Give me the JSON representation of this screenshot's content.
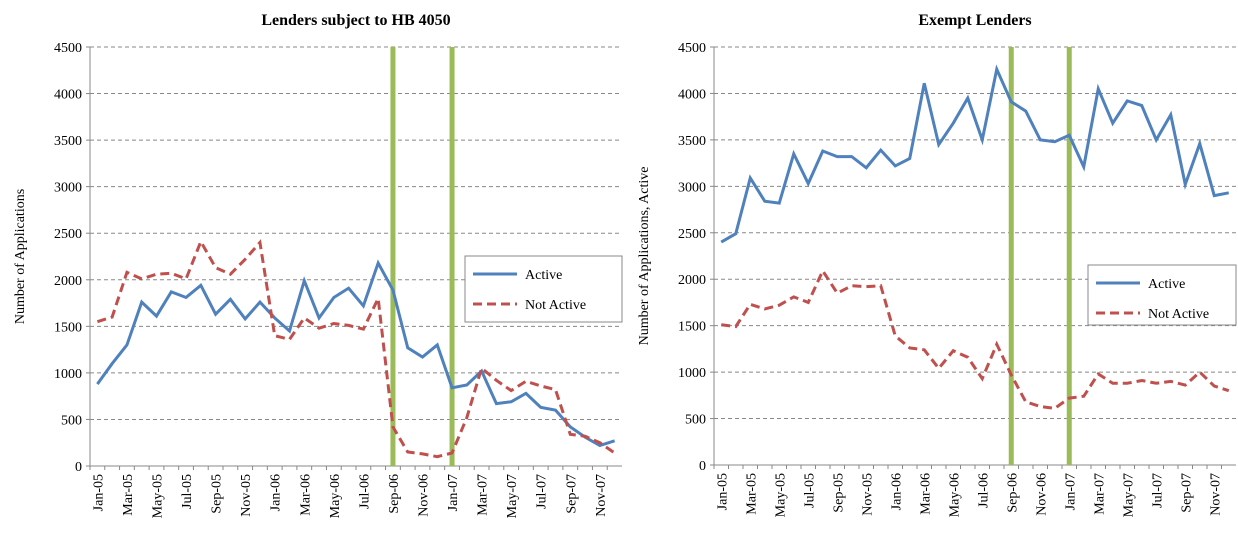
{
  "chart_data": [
    {
      "type": "line",
      "title": "Lenders subject to HB 4050",
      "y_label": "Number of Applications",
      "categories": [
        "Jan-05",
        null,
        "Mar-05",
        null,
        "May-05",
        null,
        "Jul-05",
        null,
        "Sep-05",
        null,
        "Nov-05",
        null,
        "Jan-06",
        null,
        "Mar-06",
        null,
        "May-06",
        null,
        "Jul-06",
        null,
        "Sep-06",
        null,
        "Nov-06",
        null,
        "Jan-07",
        null,
        "Mar-07",
        null,
        "May-07",
        null,
        "Jul-07",
        null,
        "Sep-07",
        null,
        "Nov-07",
        null
      ],
      "series": [
        {
          "name": "Active",
          "color": "#4f81bd",
          "dash": false,
          "values": [
            880,
            1100,
            1300,
            1760,
            1610,
            1870,
            1810,
            1940,
            1630,
            1790,
            1580,
            1760,
            1590,
            1450,
            1990,
            1590,
            1810,
            1910,
            1720,
            2180,
            1890,
            1270,
            1170,
            1300,
            840,
            870,
            1020,
            670,
            690,
            780,
            630,
            600,
            420,
            310,
            220,
            270
          ]
        },
        {
          "name": "Not Active",
          "color": "#c0504d",
          "dash": true,
          "values": [
            1550,
            1600,
            2080,
            2010,
            2060,
            2070,
            2010,
            2410,
            2130,
            2060,
            2220,
            2400,
            1400,
            1360,
            1590,
            1480,
            1530,
            1510,
            1470,
            1800,
            420,
            150,
            130,
            100,
            140,
            520,
            1050,
            920,
            810,
            910,
            860,
            820,
            340,
            320,
            250,
            140
          ]
        }
      ],
      "ylim": [
        0,
        4500
      ],
      "yticks": [
        0,
        500,
        1000,
        1500,
        2000,
        2500,
        3000,
        3500,
        4000,
        4500
      ],
      "grid": true,
      "legend": "right"
    },
    {
      "type": "line",
      "title": "Exempt Lenders",
      "y_label": "Number of Applications, Active",
      "categories": [
        "Jan-05",
        null,
        "Mar-05",
        null,
        "May-05",
        null,
        "Jul-05",
        null,
        "Sep-05",
        null,
        "Nov-05",
        null,
        "Jan-06",
        null,
        "Mar-06",
        null,
        "May-06",
        null,
        "Jul-06",
        null,
        "Sep-06",
        null,
        "Nov-06",
        null,
        "Jan-07",
        null,
        "Mar-07",
        null,
        "May-07",
        null,
        "Jul-07",
        null,
        "Sep-07",
        null,
        "Nov-07",
        null
      ],
      "series": [
        {
          "name": "Active",
          "color": "#4f81bd",
          "dash": false,
          "values": [
            2400,
            2490,
            3090,
            2840,
            2820,
            3350,
            3030,
            3380,
            3320,
            3320,
            3200,
            3390,
            3220,
            3300,
            4110,
            3450,
            3680,
            3950,
            3500,
            4260,
            3910,
            3810,
            3500,
            3480,
            3550,
            3210,
            4050,
            3680,
            3920,
            3870,
            3500,
            3770,
            3020,
            3460,
            2900,
            2930
          ]
        },
        {
          "name": "Not Active",
          "color": "#c0504d",
          "dash": true,
          "values": [
            1510,
            1490,
            1730,
            1680,
            1720,
            1810,
            1750,
            2090,
            1850,
            1930,
            1920,
            1930,
            1390,
            1260,
            1240,
            1040,
            1230,
            1160,
            930,
            1300,
            970,
            680,
            630,
            610,
            720,
            740,
            980,
            880,
            880,
            910,
            880,
            900,
            860,
            1000,
            850,
            800
          ]
        }
      ],
      "ylim": [
        0,
        4500
      ],
      "yticks": [
        0,
        500,
        1000,
        1500,
        2000,
        2500,
        3000,
        3500,
        4000,
        4500
      ],
      "grid": true,
      "legend": "right"
    }
  ]
}
